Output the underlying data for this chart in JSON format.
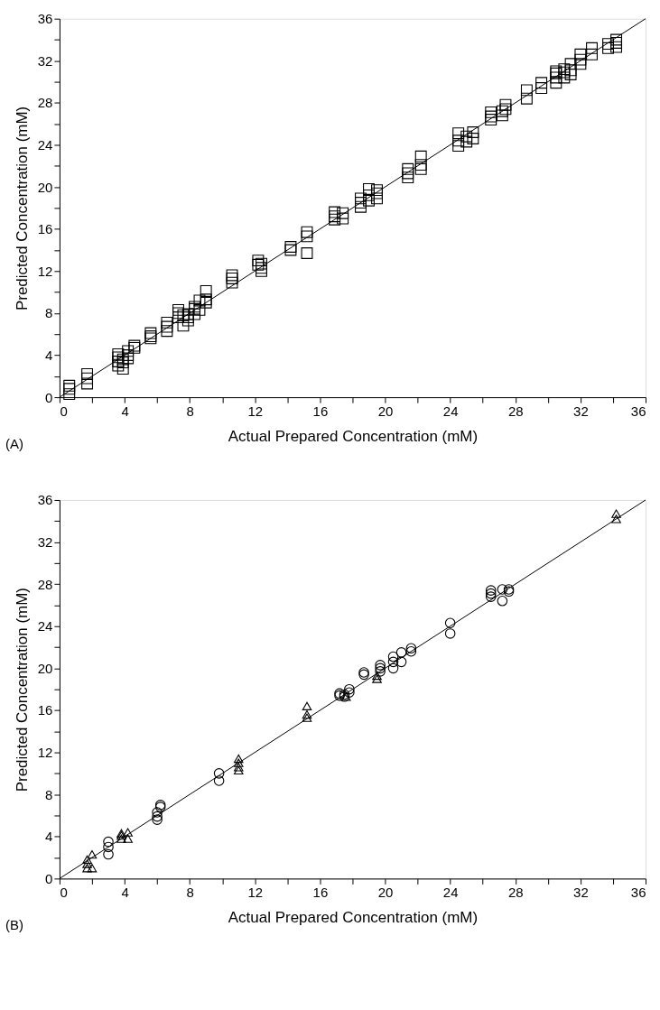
{
  "chart_data": [
    {
      "type": "scatter",
      "xlabel": "Actual Prepared Concentration (mM)",
      "ylabel": "Predicted Concentration (mM)",
      "annotations": [
        "(A)"
      ],
      "grid": false,
      "xlim": [
        0,
        36
      ],
      "ylim": [
        0,
        36
      ],
      "xticks": [
        0,
        {
          "value": 2,
          "label": null
        },
        4,
        {
          "value": 6,
          "label": null
        },
        8,
        {
          "value": 10,
          "label": null
        },
        12,
        {
          "value": 14,
          "label": null
        },
        16,
        {
          "value": 18,
          "label": null
        },
        20,
        {
          "value": 22,
          "label": null
        },
        24,
        {
          "value": 26,
          "label": null
        },
        28,
        {
          "value": 30,
          "label": null
        },
        32,
        {
          "value": 34,
          "label": null
        },
        36
      ],
      "yticks": [
        0,
        {
          "value": 2,
          "label": null
        },
        4,
        {
          "value": 6,
          "label": null
        },
        8,
        {
          "value": 10,
          "label": null
        },
        12,
        {
          "value": 14,
          "label": null
        },
        16,
        {
          "value": 18,
          "label": null
        },
        20,
        {
          "value": 22,
          "label": null
        },
        24,
        {
          "value": 26,
          "label": null
        },
        28,
        {
          "value": 30,
          "label": null
        },
        32,
        {
          "value": 34,
          "label": null
        },
        36
      ],
      "series": [
        {
          "type": "scatter",
          "marker": "square",
          "color": "#000000",
          "x": [
            0.6,
            0.6,
            0.6,
            1.7,
            1.7,
            1.7,
            3.6,
            3.6,
            3.6,
            3.6,
            3.9,
            3.9,
            3.9,
            4.2,
            4.2,
            4.2,
            4.6,
            4.6,
            5.6,
            5.6,
            5.6,
            6.6,
            6.6,
            6.6,
            7.3,
            7.3,
            7.3,
            7.6,
            7.6,
            7.9,
            7.9,
            7.9,
            8.3,
            8.3,
            8.3,
            8.6,
            8.6,
            9.0,
            9.0,
            9.0,
            10.6,
            10.6,
            10.6,
            12.2,
            12.2,
            12.4,
            12.4,
            12.4,
            14.2,
            14.2,
            15.2,
            15.2,
            15.2,
            16.9,
            16.9,
            16.9,
            17.4,
            17.4,
            18.5,
            18.5,
            18.5,
            19.0,
            19.0,
            19.0,
            19.5,
            19.5,
            19.5,
            21.4,
            21.4,
            21.4,
            22.2,
            22.2,
            22.2,
            24.5,
            24.5,
            24.5,
            25.0,
            25.0,
            25.4,
            25.4,
            26.5,
            26.5,
            26.5,
            27.2,
            27.2,
            27.4,
            27.4,
            28.7,
            28.7,
            29.6,
            29.6,
            30.5,
            30.5,
            30.5,
            30.5,
            31.0,
            31.0,
            31.0,
            31.4,
            31.4,
            31.4,
            32.0,
            32.0,
            32.0,
            32.7,
            32.7,
            33.7,
            33.7,
            34.2,
            34.2,
            34.2
          ],
          "values": [
            0.3,
            0.8,
            1.1,
            1.3,
            1.8,
            2.2,
            3.0,
            3.4,
            3.8,
            4.1,
            2.7,
            3.3,
            3.6,
            3.7,
            4.0,
            4.4,
            4.7,
            4.9,
            5.6,
            5.8,
            6.1,
            6.3,
            6.7,
            7.1,
            7.6,
            8.0,
            8.3,
            6.8,
            7.8,
            7.3,
            7.6,
            7.9,
            7.9,
            8.4,
            8.6,
            8.3,
            9.2,
            9.0,
            9.3,
            10.1,
            10.9,
            11.3,
            11.6,
            12.6,
            13.0,
            12.0,
            12.3,
            12.7,
            14.0,
            14.3,
            15.3,
            15.7,
            13.7,
            16.9,
            17.2,
            17.6,
            17.0,
            17.5,
            18.1,
            18.5,
            18.9,
            18.7,
            19.2,
            19.8,
            18.9,
            19.4,
            19.7,
            20.9,
            21.3,
            21.7,
            21.7,
            22.1,
            22.9,
            23.9,
            24.4,
            25.1,
            24.3,
            24.8,
            24.6,
            25.2,
            26.4,
            26.7,
            27.1,
            26.8,
            27.2,
            27.4,
            27.8,
            28.4,
            29.2,
            29.4,
            29.9,
            29.9,
            30.4,
            30.8,
            31.0,
            30.4,
            30.9,
            31.2,
            30.7,
            31.1,
            31.7,
            31.7,
            32.1,
            32.6,
            32.6,
            33.2,
            33.2,
            33.6,
            33.3,
            33.7,
            34.0
          ]
        },
        {
          "type": "line",
          "color": "#000000",
          "x": [
            0,
            36
          ],
          "values": [
            0,
            36
          ]
        }
      ]
    },
    {
      "type": "scatter",
      "xlabel": "Actual Prepared Concentration (mM)",
      "ylabel": "Predicted Concentration (mM)",
      "annotations": [
        "(B)"
      ],
      "grid": false,
      "xlim": [
        0,
        36
      ],
      "ylim": [
        0,
        36
      ],
      "xticks": [
        0,
        {
          "value": 2,
          "label": null
        },
        4,
        {
          "value": 6,
          "label": null
        },
        8,
        {
          "value": 10,
          "label": null
        },
        12,
        {
          "value": 14,
          "label": null
        },
        16,
        {
          "value": 18,
          "label": null
        },
        20,
        {
          "value": 22,
          "label": null
        },
        24,
        {
          "value": 26,
          "label": null
        },
        28,
        {
          "value": 30,
          "label": null
        },
        32,
        {
          "value": 34,
          "label": null
        },
        36
      ],
      "yticks": [
        0,
        {
          "value": 2,
          "label": null
        },
        4,
        {
          "value": 6,
          "label": null
        },
        8,
        {
          "value": 10,
          "label": null
        },
        12,
        {
          "value": 14,
          "label": null
        },
        16,
        {
          "value": 18,
          "label": null
        },
        20,
        {
          "value": 22,
          "label": null
        },
        24,
        {
          "value": 26,
          "label": null
        },
        28,
        {
          "value": 30,
          "label": null
        },
        32,
        {
          "value": 34,
          "label": null
        },
        36
      ],
      "series": [
        {
          "type": "scatter",
          "marker": "circle",
          "color": "#000000",
          "x": [
            3.0,
            3.0,
            3.0,
            6.0,
            6.0,
            6.0,
            6.2,
            6.2,
            9.8,
            9.8,
            17.2,
            17.2,
            17.5,
            17.5,
            17.8,
            17.8,
            18.7,
            18.7,
            19.7,
            19.7,
            19.7,
            20.5,
            20.5,
            20.5,
            21.0,
            21.0,
            21.6,
            21.6,
            24.0,
            24.0,
            26.5,
            26.5,
            26.5,
            27.2,
            27.2,
            27.6,
            27.6
          ],
          "values": [
            2.3,
            3.0,
            3.5,
            5.6,
            5.9,
            6.3,
            6.8,
            7.0,
            9.3,
            10.0,
            17.4,
            17.6,
            17.3,
            17.5,
            17.7,
            18.0,
            19.4,
            19.6,
            19.7,
            20.0,
            20.3,
            20.0,
            20.6,
            21.1,
            20.6,
            21.5,
            21.6,
            21.9,
            23.3,
            24.3,
            26.8,
            27.1,
            27.4,
            26.4,
            27.5,
            27.3,
            27.5
          ]
        },
        {
          "type": "scatter",
          "marker": "triangle",
          "color": "#000000",
          "x": [
            1.7,
            1.7,
            1.7,
            2.0,
            2.0,
            3.8,
            3.8,
            3.8,
            4.2,
            4.2,
            11.0,
            11.0,
            11.0,
            11.0,
            15.2,
            15.2,
            15.2,
            17.6,
            19.5,
            19.5,
            34.2,
            34.2
          ],
          "values": [
            1.0,
            1.4,
            1.8,
            1.0,
            2.3,
            3.8,
            4.1,
            4.3,
            3.8,
            4.4,
            10.3,
            10.6,
            11.0,
            11.4,
            15.3,
            15.6,
            16.4,
            17.3,
            19.0,
            19.3,
            34.2,
            34.7
          ]
        },
        {
          "type": "line",
          "color": "#000000",
          "x": [
            0,
            36
          ],
          "values": [
            0,
            36
          ]
        }
      ]
    }
  ]
}
